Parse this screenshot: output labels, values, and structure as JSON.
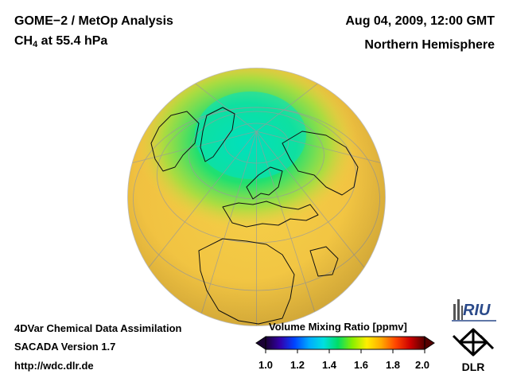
{
  "header": {
    "title_line1": "GOME−2 / MetOp Analysis",
    "title_line2_prefix": "CH",
    "title_line2_sub": "4",
    "title_line2_suffix": " at 55.4 hPa",
    "date": "Aug 04, 2009, 12:00 GMT",
    "region": "Northern Hemisphere"
  },
  "footer": {
    "line1": "4DVar Chemical Data Assimilation",
    "line2": "SACADA Version 1.7",
    "line3": "http://wdc.dlr.de"
  },
  "colorbar": {
    "title": "Volume Mixing Ratio [ppmv]",
    "ticks": [
      "1.0",
      "1.2",
      "1.4",
      "1.6",
      "1.8",
      "2.0"
    ],
    "colors": [
      "#1a0033",
      "#3300aa",
      "#0044ff",
      "#00aaff",
      "#00e0e0",
      "#00dd66",
      "#88ee00",
      "#ffee00",
      "#ffaa00",
      "#ff4400",
      "#cc0000",
      "#550000"
    ]
  },
  "map": {
    "field_colors": {
      "low": "#00e0a0",
      "mid": "#80e040",
      "high": "#f0d040",
      "highest": "#f2bb3c"
    }
  },
  "logos": {
    "riu": "RIU",
    "dlr": "DLR"
  }
}
